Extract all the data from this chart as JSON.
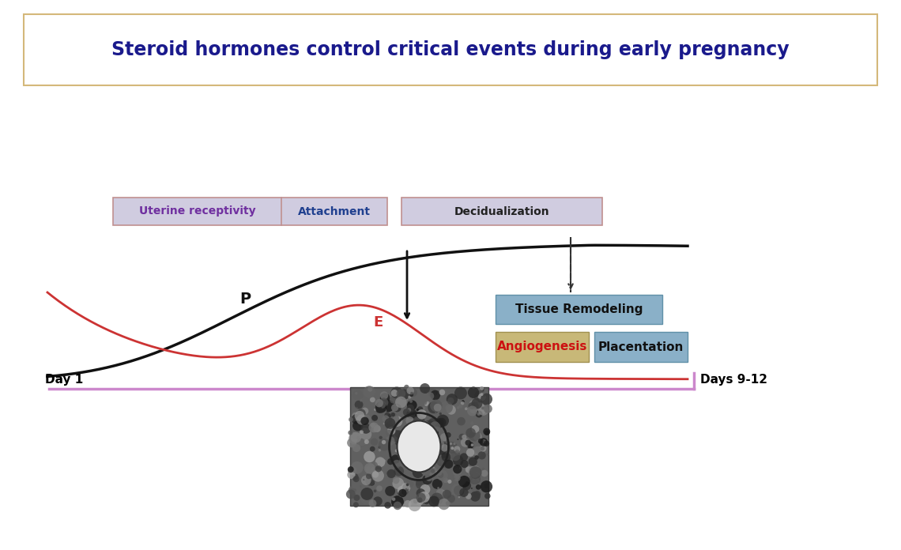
{
  "title": "Steroid hormones control critical events during early pregnancy",
  "title_color": "#1a1a8c",
  "title_fontsize": 17,
  "background_color": "#ffffff",
  "title_box_edge_color": "#d4b87a",
  "phases": [
    "Uterine receptivity",
    "Attachment",
    "Decidualization"
  ],
  "phase_bg": "#d0cce0",
  "phase_text_colors": [
    "#7030a0",
    "#1f3f8f",
    "#222222"
  ],
  "phase_box_edge": "#c09090",
  "right_boxes": [
    {
      "label": "Tissue Remodeling",
      "bg": "#8ab0c8",
      "edge": "#6090a8",
      "text_color": "#111111",
      "bold": true
    },
    {
      "label": "Angiogenesis",
      "bg": "#c8b878",
      "edge": "#a09050",
      "text_color": "#cc1111",
      "bold": true
    },
    {
      "label": "Placentation",
      "bg": "#8ab0c8",
      "edge": "#6090a8",
      "text_color": "#111111",
      "bold": true
    }
  ],
  "day1_label": "Day 1",
  "days_label": "Days 9-12",
  "P_label": "P",
  "E_label": "E",
  "P_color": "#111111",
  "E_color": "#cc3333",
  "timeline_color": "#cc88cc",
  "arrow_color": "#111111",
  "dashed_arrow_color": "#333333"
}
